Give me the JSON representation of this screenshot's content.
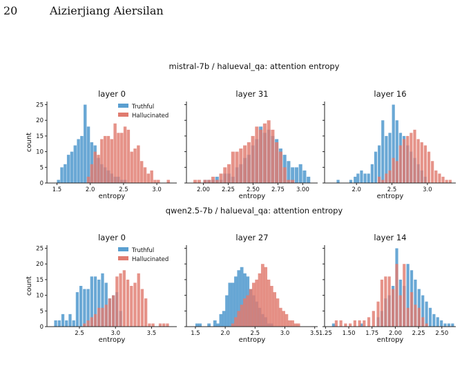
{
  "header": {
    "page_number": "20",
    "author": "Aizierjiang Aiersilan"
  },
  "colors": {
    "truthful": "#5a9fd0",
    "hallucinated": "#e07b6f",
    "axis": "#222222"
  },
  "legend": {
    "truthful": "Truthful",
    "hallucinated": "Hallucinated"
  },
  "chart_data": [
    {
      "type": "bar",
      "title": "mistral-7b / halueval_qa: attention entropy",
      "panels": [
        {
          "title": "layer 0",
          "xlabel": "entropy",
          "ylabel": "count",
          "xlim": [
            1.35,
            3.3
          ],
          "ylim": [
            0,
            26
          ],
          "xticks": [
            1.5,
            2.0,
            2.5,
            3.0
          ],
          "xtick_labels": [
            "1.5",
            "2.0",
            "2.5",
            "3.0"
          ],
          "yticks": [
            0,
            5,
            10,
            15,
            20,
            25
          ],
          "ytick_labels": [
            "0",
            "5",
            "10",
            "15",
            "20",
            "25"
          ],
          "legend": true,
          "bin_width": 0.05,
          "series": [
            {
              "name": "Truthful",
              "x": [
                1.5,
                1.55,
                1.6,
                1.65,
                1.7,
                1.75,
                1.8,
                1.85,
                1.9,
                1.95,
                2.0,
                2.05,
                2.1,
                2.15,
                2.2,
                2.25,
                2.3,
                2.35,
                2.4,
                2.45,
                2.5
              ],
              "values": [
                1,
                5,
                6,
                9,
                10,
                12,
                14,
                15,
                25,
                18,
                13,
                12,
                8,
                6,
                5,
                4,
                3,
                2,
                2,
                1,
                1
              ]
            },
            {
              "name": "Hallucinated",
              "x": [
                1.95,
                2.0,
                2.05,
                2.1,
                2.15,
                2.2,
                2.25,
                2.3,
                2.35,
                2.4,
                2.45,
                2.5,
                2.55,
                2.6,
                2.65,
                2.7,
                2.75,
                2.8,
                2.85,
                2.9,
                2.95,
                3.0,
                3.05,
                3.1,
                3.15
              ],
              "values": [
                2,
                6,
                10,
                9,
                14,
                15,
                15,
                14,
                19,
                16,
                16,
                18,
                17,
                10,
                11,
                12,
                7,
                5,
                3,
                4,
                1,
                1,
                0,
                0,
                1
              ]
            }
          ]
        },
        {
          "title": "layer 31",
          "xlabel": "entropy",
          "xlim": [
            1.83,
            3.15
          ],
          "ylim": [
            0,
            26
          ],
          "xticks": [
            2.0,
            2.25,
            2.5,
            2.75,
            3.0
          ],
          "xtick_labels": [
            "2.00",
            "2.25",
            "2.50",
            "2.75",
            "3.00"
          ],
          "legend": false,
          "bin_width": 0.038,
          "series": [
            {
              "name": "Truthful",
              "x": [
                2.0,
                2.04,
                2.08,
                2.12,
                2.16,
                2.2,
                2.24,
                2.28,
                2.32,
                2.36,
                2.4,
                2.44,
                2.48,
                2.52,
                2.56,
                2.6,
                2.64,
                2.68,
                2.72,
                2.76,
                2.8,
                2.84,
                2.88,
                2.92,
                2.96,
                3.0,
                3.04
              ],
              "values": [
                1,
                1,
                1,
                2,
                1,
                3,
                3,
                2,
                5,
                6,
                8,
                9,
                12,
                14,
                18,
                16,
                17,
                15,
                14,
                11,
                9,
                7,
                5,
                5,
                6,
                4,
                2
              ]
            },
            {
              "name": "Hallucinated",
              "x": [
                1.9,
                1.94,
                2.0,
                2.04,
                2.08,
                2.12,
                2.16,
                2.2,
                2.24,
                2.28,
                2.32,
                2.36,
                2.4,
                2.44,
                2.48,
                2.52,
                2.56,
                2.6,
                2.64,
                2.68,
                2.72,
                2.76,
                2.8,
                2.84,
                2.88
              ],
              "values": [
                1,
                1,
                1,
                1,
                2,
                1,
                3,
                5,
                6,
                10,
                10,
                11,
                12,
                13,
                15,
                18,
                17,
                19,
                20,
                17,
                13,
                10,
                5,
                1,
                1
              ]
            }
          ]
        },
        {
          "title": "layer 16",
          "xlabel": "entropy",
          "xlim": [
            1.55,
            3.4
          ],
          "ylim": [
            0,
            26
          ],
          "xticks": [
            2.0,
            2.5,
            3.0
          ],
          "xtick_labels": [
            "2.0",
            "2.5",
            "3.0"
          ],
          "legend": false,
          "bin_width": 0.045,
          "series": [
            {
              "name": "Truthful",
              "x": [
                1.72,
                1.9,
                1.96,
                2.0,
                2.05,
                2.1,
                2.15,
                2.2,
                2.25,
                2.3,
                2.35,
                2.4,
                2.45,
                2.5,
                2.55,
                2.6,
                2.65,
                2.7,
                2.75,
                2.8,
                2.85,
                2.9,
                2.95
              ],
              "values": [
                1,
                1,
                2,
                3,
                4,
                3,
                3,
                6,
                10,
                12,
                20,
                15,
                16,
                25,
                20,
                16,
                15,
                12,
                10,
                8,
                6,
                4,
                2
              ]
            },
            {
              "name": "Hallucinated",
              "x": [
                2.3,
                2.35,
                2.4,
                2.45,
                2.5,
                2.55,
                2.6,
                2.65,
                2.7,
                2.75,
                2.8,
                2.85,
                2.9,
                2.95,
                3.0,
                3.05,
                3.1,
                3.15,
                3.2,
                3.25,
                3.3
              ],
              "values": [
                2,
                1,
                3,
                4,
                8,
                7,
                12,
                14,
                15,
                16,
                17,
                14,
                13,
                12,
                10,
                7,
                4,
                3,
                2,
                1,
                1
              ]
            }
          ]
        }
      ]
    },
    {
      "type": "bar",
      "title": "qwen2.5-7b / halueval_qa: attention entropy",
      "panels": [
        {
          "title": "layer 0",
          "xlabel": "entropy",
          "ylabel": "count",
          "xlim": [
            2.05,
            3.85
          ],
          "ylim": [
            0,
            26
          ],
          "xticks": [
            2.5,
            3.0,
            3.5
          ],
          "xtick_labels": [
            "2.5",
            "3.0",
            "3.5"
          ],
          "yticks": [
            0,
            5,
            10,
            15,
            20,
            25
          ],
          "ytick_labels": [
            "0",
            "5",
            "10",
            "15",
            "20",
            "25"
          ],
          "legend": true,
          "bin_width": 0.045,
          "series": [
            {
              "name": "Truthful",
              "x": [
                2.15,
                2.2,
                2.25,
                2.3,
                2.35,
                2.4,
                2.45,
                2.5,
                2.55,
                2.6,
                2.65,
                2.7,
                2.75,
                2.8,
                2.85,
                2.9,
                2.95,
                3.0,
                3.05
              ],
              "values": [
                2,
                2,
                4,
                2,
                4,
                2,
                11,
                13,
                12,
                12,
                16,
                16,
                15,
                17,
                14,
                9,
                10,
                11,
                5
              ]
            },
            {
              "name": "Hallucinated",
              "x": [
                2.55,
                2.6,
                2.65,
                2.7,
                2.75,
                2.8,
                2.85,
                2.9,
                2.95,
                3.0,
                3.05,
                3.1,
                3.15,
                3.2,
                3.25,
                3.3,
                3.35,
                3.4,
                3.45,
                3.5,
                3.55,
                3.6,
                3.65,
                3.7
              ],
              "values": [
                1,
                2,
                3,
                4,
                6,
                6,
                7,
                9,
                10,
                16,
                17,
                18,
                15,
                13,
                14,
                17,
                12,
                9,
                1,
                1,
                0,
                1,
                1,
                1
              ]
            }
          ]
        },
        {
          "title": "layer 27",
          "xlabel": "entropy",
          "xlim": [
            1.35,
            3.55
          ],
          "ylim": [
            0,
            26
          ],
          "xticks": [
            1.5,
            2.0,
            2.5,
            3.0,
            3.5
          ],
          "xtick_labels": [
            "1.5",
            "2.0",
            "2.5",
            "3.0",
            "3.5"
          ],
          "legend": false,
          "bin_width": 0.06,
          "series": [
            {
              "name": "Truthful",
              "x": [
                1.5,
                1.55,
                1.7,
                1.8,
                1.85,
                1.9,
                1.95,
                2.0,
                2.05,
                2.1,
                2.15,
                2.2,
                2.25,
                2.3,
                2.35,
                2.4,
                2.45,
                2.5,
                2.55,
                2.6,
                2.65,
                2.7,
                2.75
              ],
              "values": [
                1,
                1,
                1,
                2,
                1,
                4,
                5,
                10,
                14,
                14,
                16,
                18,
                19,
                17,
                16,
                12,
                10,
                8,
                6,
                4,
                3,
                1,
                1
              ]
            },
            {
              "name": "Hallucinated",
              "x": [
                2.1,
                2.15,
                2.2,
                2.25,
                2.3,
                2.35,
                2.4,
                2.45,
                2.5,
                2.55,
                2.6,
                2.65,
                2.7,
                2.75,
                2.8,
                2.85,
                2.9,
                2.95,
                3.0,
                3.05,
                3.1,
                3.15,
                3.2
              ],
              "values": [
                1,
                3,
                5,
                7,
                9,
                10,
                12,
                14,
                15,
                17,
                20,
                19,
                15,
                13,
                11,
                9,
                6,
                5,
                4,
                2,
                2,
                1,
                1
              ]
            }
          ]
        },
        {
          "title": "layer 14",
          "xlabel": "entropy",
          "xlim": [
            1.24,
            2.65
          ],
          "ylim": [
            0,
            26
          ],
          "xticks": [
            1.25,
            1.5,
            1.75,
            2.0,
            2.25,
            2.5
          ],
          "xtick_labels": [
            "1.25",
            "1.50",
            "1.75",
            "2.00",
            "2.25",
            "2.50"
          ],
          "legend": false,
          "bin_width": 0.034,
          "series": [
            {
              "name": "Truthful",
              "x": [
                1.32,
                1.62,
                1.8,
                1.84,
                1.88,
                1.92,
                1.96,
                2.0,
                2.04,
                2.08,
                2.12,
                2.16,
                2.2,
                2.24,
                2.28,
                2.32,
                2.36,
                2.4,
                2.44,
                2.48,
                2.52,
                2.56,
                2.6
              ],
              "values": [
                1,
                1,
                3,
                5,
                9,
                10,
                13,
                25,
                15,
                13,
                20,
                18,
                15,
                12,
                10,
                8,
                6,
                4,
                3,
                2,
                1,
                1,
                1
              ]
            },
            {
              "name": "Hallucinated",
              "x": [
                1.35,
                1.4,
                1.45,
                1.5,
                1.55,
                1.6,
                1.65,
                1.7,
                1.75,
                1.8,
                1.84,
                1.88,
                1.92,
                1.96,
                2.0,
                2.04,
                2.08,
                2.12,
                2.16,
                2.2,
                2.24,
                2.28,
                2.32
              ],
              "values": [
                2,
                2,
                1,
                1,
                2,
                2,
                2,
                3,
                5,
                8,
                15,
                16,
                16,
                12,
                20,
                10,
                20,
                6,
                11,
                7,
                6,
                3,
                1
              ]
            }
          ]
        }
      ]
    }
  ]
}
